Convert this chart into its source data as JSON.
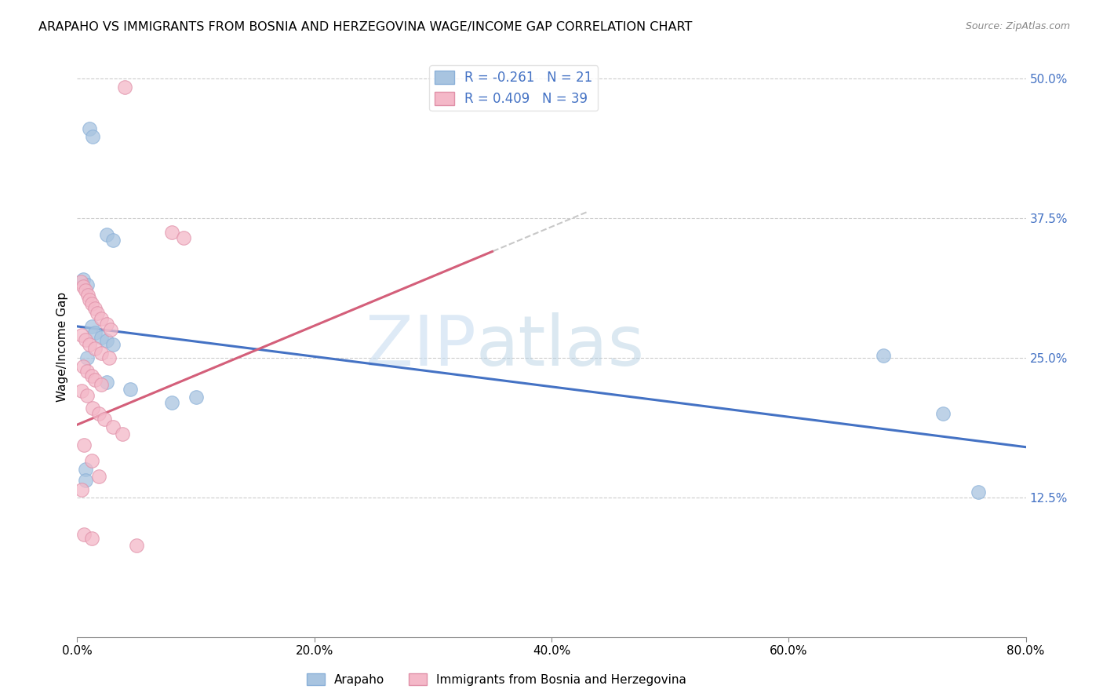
{
  "title": "ARAPAHO VS IMMIGRANTS FROM BOSNIA AND HERZEGOVINA WAGE/INCOME GAP CORRELATION CHART",
  "source": "Source: ZipAtlas.com",
  "ylabel": "Wage/Income Gap",
  "xlim": [
    0.0,
    0.8
  ],
  "ylim": [
    0.0,
    0.52
  ],
  "xtick_labels": [
    "0.0%",
    "20.0%",
    "40.0%",
    "60.0%",
    "80.0%"
  ],
  "xtick_values": [
    0.0,
    0.2,
    0.4,
    0.6,
    0.8
  ],
  "ytick_labels": [
    "12.5%",
    "25.0%",
    "37.5%",
    "50.0%"
  ],
  "ytick_values": [
    0.125,
    0.25,
    0.375,
    0.5
  ],
  "arapaho_R": -0.261,
  "arapaho_N": 21,
  "bosnia_R": 0.409,
  "bosnia_N": 39,
  "arapaho_color": "#a8c4e0",
  "bosnia_color": "#f4b8c8",
  "arapaho_line_color": "#4472c4",
  "bosnia_line_color": "#d45f7a",
  "watermark_zip": "ZIP",
  "watermark_atlas": "atlas",
  "arapaho_points": [
    [
      0.01,
      0.455
    ],
    [
      0.013,
      0.448
    ],
    [
      0.025,
      0.36
    ],
    [
      0.03,
      0.355
    ],
    [
      0.005,
      0.32
    ],
    [
      0.008,
      0.315
    ],
    [
      0.012,
      0.278
    ],
    [
      0.015,
      0.272
    ],
    [
      0.02,
      0.268
    ],
    [
      0.025,
      0.265
    ],
    [
      0.03,
      0.262
    ],
    [
      0.008,
      0.25
    ],
    [
      0.025,
      0.228
    ],
    [
      0.045,
      0.222
    ],
    [
      0.1,
      0.215
    ],
    [
      0.007,
      0.15
    ],
    [
      0.007,
      0.14
    ],
    [
      0.08,
      0.21
    ],
    [
      0.68,
      0.252
    ],
    [
      0.73,
      0.2
    ],
    [
      0.76,
      0.13
    ]
  ],
  "bosnia_points": [
    [
      0.04,
      0.492
    ],
    [
      0.08,
      0.362
    ],
    [
      0.09,
      0.357
    ],
    [
      0.003,
      0.318
    ],
    [
      0.005,
      0.314
    ],
    [
      0.007,
      0.31
    ],
    [
      0.009,
      0.306
    ],
    [
      0.01,
      0.302
    ],
    [
      0.012,
      0.298
    ],
    [
      0.015,
      0.294
    ],
    [
      0.017,
      0.29
    ],
    [
      0.02,
      0.285
    ],
    [
      0.025,
      0.28
    ],
    [
      0.028,
      0.275
    ],
    [
      0.004,
      0.27
    ],
    [
      0.007,
      0.266
    ],
    [
      0.01,
      0.262
    ],
    [
      0.015,
      0.258
    ],
    [
      0.02,
      0.254
    ],
    [
      0.027,
      0.25
    ],
    [
      0.005,
      0.242
    ],
    [
      0.008,
      0.238
    ],
    [
      0.012,
      0.234
    ],
    [
      0.015,
      0.23
    ],
    [
      0.02,
      0.226
    ],
    [
      0.004,
      0.22
    ],
    [
      0.008,
      0.216
    ],
    [
      0.013,
      0.205
    ],
    [
      0.018,
      0.2
    ],
    [
      0.023,
      0.195
    ],
    [
      0.03,
      0.188
    ],
    [
      0.038,
      0.182
    ],
    [
      0.006,
      0.172
    ],
    [
      0.012,
      0.158
    ],
    [
      0.018,
      0.144
    ],
    [
      0.004,
      0.132
    ],
    [
      0.006,
      0.092
    ],
    [
      0.012,
      0.088
    ],
    [
      0.05,
      0.082
    ]
  ]
}
